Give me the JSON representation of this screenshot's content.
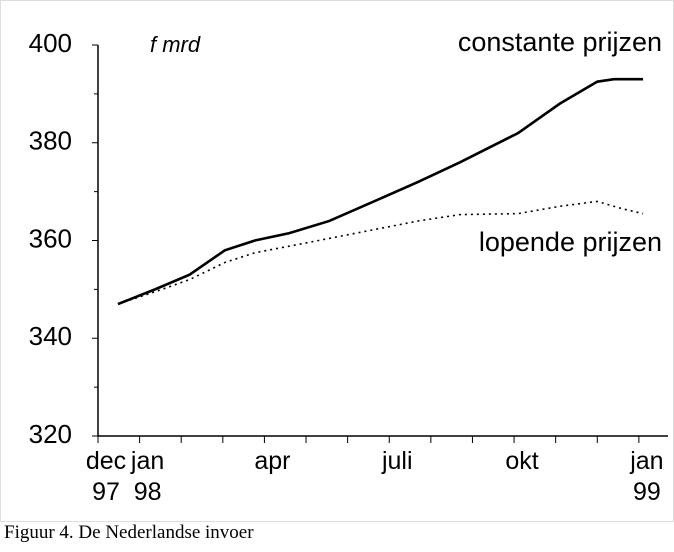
{
  "chart_data": {
    "type": "line",
    "unit_label": "f mrd",
    "caption": "Figuur 4. De Nederlandse invoer",
    "xlim": [
      0,
      13.7
    ],
    "xticks": [
      {
        "value": 0,
        "label": "dec\n97"
      },
      {
        "value": 1,
        "label": "jan\n98"
      },
      {
        "value": 4,
        "label": "apr"
      },
      {
        "value": 7,
        "label": "juli"
      },
      {
        "value": 10,
        "label": "okt"
      },
      {
        "value": 13,
        "label": "jan\n99"
      }
    ],
    "xminor_ticks": [
      2,
      3,
      5,
      6,
      8,
      9,
      11,
      12
    ],
    "ylim": [
      320,
      400
    ],
    "yticks": [
      320,
      340,
      360,
      380,
      400
    ],
    "yminor_ticks": [
      330,
      350,
      370,
      390
    ],
    "series": [
      {
        "name": "constante prijzen",
        "color": "#000000",
        "dash": "solid",
        "x": [
          0.48,
          1.37,
          2.2,
          3.05,
          3.77,
          4.6,
          5.56,
          6.5,
          7.7,
          8.7,
          10.1,
          11.1,
          12.0,
          12.4,
          13.1
        ],
        "values": [
          347,
          350,
          353,
          358,
          360,
          361.5,
          364,
          367.5,
          372,
          376,
          382,
          388,
          392.5,
          393,
          393
        ]
      },
      {
        "name": "lopende prijzen",
        "color": "#000000",
        "dash": "dotted",
        "x": [
          0.48,
          1.37,
          2.2,
          3.05,
          3.77,
          5.0,
          6.5,
          7.7,
          8.7,
          10.1,
          11.1,
          12.0,
          12.6,
          13.1
        ],
        "values": [
          347,
          349.5,
          352,
          355.5,
          357.5,
          359.5,
          362,
          364,
          365.3,
          365.5,
          367,
          368,
          366.5,
          365.5
        ]
      }
    ]
  }
}
